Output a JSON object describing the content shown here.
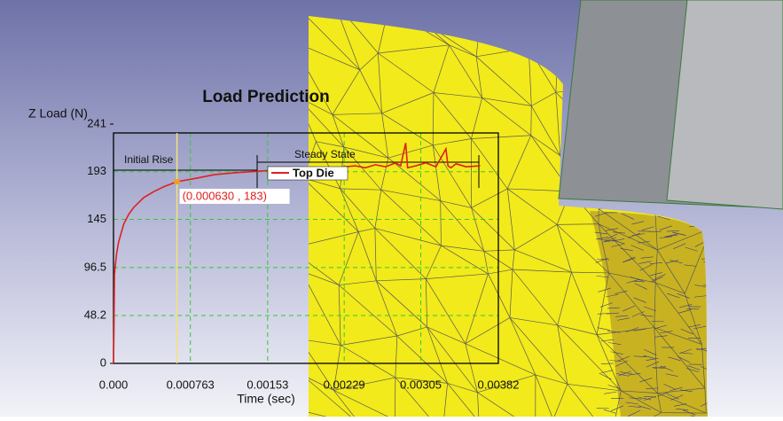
{
  "chart_data": {
    "type": "line",
    "title": "Load Prediction",
    "y_label": "Z Load (N)",
    "x_label": "Time (sec)",
    "xlim": [
      0,
      0.00382
    ],
    "xticks": [
      {
        "value": 0,
        "label": "0.000"
      },
      0.000763,
      0.00153,
      0.00229,
      0.00305,
      0.00382
    ],
    "ylim": [
      0,
      241
    ],
    "yticks": [
      0,
      48.2,
      96.5,
      145,
      193,
      241
    ],
    "grid": true,
    "x": [
      0,
      5e-06,
      1e-05,
      3e-05,
      5e-05,
      0.0001,
      0.00015,
      0.0002,
      0.0003,
      0.0004,
      0.0005,
      0.00063,
      0.0008,
      0.001,
      0.0012,
      0.0015,
      0.0018,
      0.002,
      0.0022,
      0.0024,
      0.0025,
      0.0026,
      0.0027,
      0.0028,
      0.00285,
      0.0029,
      0.00292,
      0.003,
      0.0031,
      0.0032,
      0.0033,
      0.00332,
      0.00335,
      0.0034,
      0.0035,
      0.00364
    ],
    "series": [
      {
        "name": "Top Die",
        "color": "#e02020",
        "values": [
          0,
          40,
          90,
          110,
          122,
          140,
          150,
          157,
          167,
          173,
          178,
          183,
          186,
          190,
          192,
          194,
          195,
          196,
          197,
          199,
          197,
          200,
          198,
          202,
          199,
          222,
          197,
          199,
          202,
          198,
          216,
          199,
          197,
          201,
          198,
          199
        ]
      }
    ],
    "annotations": [
      "Initial Rise",
      "Steady State"
    ],
    "marker": {
      "x": 0.00063,
      "y": 183,
      "label": "(0.000630 , 183)"
    }
  }
}
